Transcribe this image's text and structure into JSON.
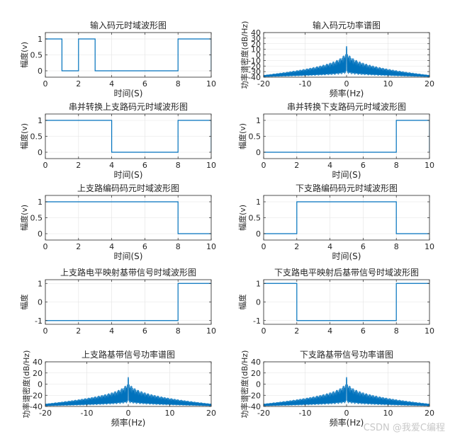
{
  "figure": {
    "watermark": "CSDN @我爱C编程"
  },
  "chart_data": [
    {
      "type": "line",
      "id": "p1",
      "title": "输入码元时域波形图",
      "xlabel": "时间(S)",
      "ylabel": "幅度(v)",
      "xlim": [
        0,
        10
      ],
      "ylim": [
        -0.2,
        1.2
      ],
      "xticks": [
        0,
        2,
        4,
        6,
        8,
        10
      ],
      "yticks": [
        0,
        0.5,
        1
      ],
      "ytick_labels": [
        "0",
        "0.5",
        "1"
      ],
      "grid": true,
      "color": "#0072BD",
      "x": [
        0,
        1,
        1,
        2,
        2,
        3,
        3,
        8,
        8,
        10,
        10
      ],
      "y": [
        1,
        1,
        0,
        0,
        1,
        1,
        0,
        0,
        1,
        1,
        0
      ]
    },
    {
      "type": "spectrum",
      "id": "p2",
      "title": "输入码元功率谱图",
      "xlabel": "频率(Hz)",
      "ylabel": "功率谱密度(dB/Hz)",
      "xlim": [
        -20,
        20
      ],
      "ylim": [
        -40,
        40
      ],
      "xticks": [
        -20,
        -10,
        0,
        10,
        20
      ],
      "yticks": [
        -40,
        -30,
        -20,
        -10,
        0,
        10,
        20,
        30,
        40
      ],
      "grid": true,
      "color": "#0072BD",
      "peak_db": 15,
      "floor_db": -40,
      "envelope_edge_db": -36
    },
    {
      "type": "line",
      "id": "p3",
      "title": "串并转换上支路码元时域波形图",
      "xlabel": "时间(S)",
      "ylabel": "幅度(v)",
      "xlim": [
        0,
        10
      ],
      "ylim": [
        -0.2,
        1.2
      ],
      "xticks": [
        0,
        2,
        4,
        6,
        8,
        10
      ],
      "yticks": [
        0,
        0.5,
        1
      ],
      "ytick_labels": [
        "0",
        "0.5",
        "1"
      ],
      "grid": true,
      "color": "#0072BD",
      "x": [
        0,
        4,
        4,
        8,
        8,
        10,
        10
      ],
      "y": [
        1,
        1,
        0,
        0,
        1,
        1,
        0
      ]
    },
    {
      "type": "line",
      "id": "p4",
      "title": "串并转换下支路码元时域波形图",
      "xlabel": "时间(S)",
      "ylabel": "幅度(v)",
      "xlim": [
        0,
        10
      ],
      "ylim": [
        -0.2,
        1.2
      ],
      "xticks": [
        0,
        2,
        4,
        6,
        8,
        10
      ],
      "yticks": [
        0,
        0.5,
        1
      ],
      "ytick_labels": [
        "0",
        "0.5",
        "1"
      ],
      "grid": true,
      "color": "#0072BD",
      "x": [
        0,
        8,
        8,
        10,
        10
      ],
      "y": [
        0,
        0,
        1,
        1,
        0
      ]
    },
    {
      "type": "line",
      "id": "p5",
      "title": "上支路编码码元时域波形图",
      "xlabel": "时间(S)",
      "ylabel": "幅度(v)",
      "xlim": [
        0,
        10
      ],
      "ylim": [
        -0.2,
        1.2
      ],
      "xticks": [
        0,
        2,
        4,
        6,
        8,
        10
      ],
      "yticks": [
        0,
        0.5,
        1
      ],
      "ytick_labels": [
        "0",
        "0.5",
        "1"
      ],
      "grid": true,
      "color": "#0072BD",
      "x": [
        0,
        8,
        8,
        10
      ],
      "y": [
        1,
        1,
        0,
        0
      ]
    },
    {
      "type": "line",
      "id": "p6",
      "title": "下支路编码码元时域波形图",
      "xlabel": "时间(S)",
      "ylabel": "幅度(v)",
      "xlim": [
        0,
        10
      ],
      "ylim": [
        -0.2,
        1.2
      ],
      "xticks": [
        0,
        2,
        4,
        6,
        8,
        10
      ],
      "yticks": [
        0,
        0.5,
        1
      ],
      "ytick_labels": [
        "0",
        "0.5",
        "1"
      ],
      "grid": true,
      "color": "#0072BD",
      "x": [
        0,
        2,
        2,
        8,
        8,
        10
      ],
      "y": [
        0,
        0,
        1,
        1,
        0,
        0
      ]
    },
    {
      "type": "line",
      "id": "p7",
      "title": "上支路电平映射基带信号时域波形图",
      "xlabel": "",
      "ylabel": "幅度",
      "xlim": [
        0,
        10
      ],
      "ylim": [
        -1.2,
        1.2
      ],
      "xticks": [
        0,
        2,
        4,
        6,
        8,
        10
      ],
      "yticks": [
        -1,
        0,
        1
      ],
      "ytick_labels": [
        "-1",
        "0",
        "1"
      ],
      "grid": true,
      "color": "#0072BD",
      "x": [
        0,
        8,
        8,
        10
      ],
      "y": [
        -1,
        -1,
        1,
        1
      ]
    },
    {
      "type": "line",
      "id": "p8",
      "title": "下支路电平映射后基带信号时域波形图",
      "xlabel": "",
      "ylabel": "幅度",
      "xlim": [
        0,
        10
      ],
      "ylim": [
        -1.2,
        1.2
      ],
      "xticks": [
        0,
        2,
        4,
        6,
        8,
        10
      ],
      "yticks": [
        -1,
        0,
        1
      ],
      "ytick_labels": [
        "-1",
        "0",
        "1"
      ],
      "grid": true,
      "color": "#0072BD",
      "x": [
        0,
        2,
        2,
        8,
        8,
        10
      ],
      "y": [
        1,
        1,
        -1,
        -1,
        1,
        1
      ]
    },
    {
      "type": "spectrum",
      "id": "p9",
      "title": "上支路基带信号功率谱图",
      "xlabel": "频率(Hz)",
      "ylabel": "功率谱密度(dB/Hz)",
      "xlim": [
        -20,
        20
      ],
      "ylim": [
        -40,
        40
      ],
      "xticks": [
        -20,
        -10,
        0,
        10,
        20
      ],
      "yticks": [
        -40,
        -20,
        0,
        20,
        40
      ],
      "grid": true,
      "color": "#0072BD",
      "peak_db": 12,
      "floor_db": -40,
      "envelope_edge_db": -35
    },
    {
      "type": "spectrum",
      "id": "p10",
      "title": "下支路基带信号功率谱图",
      "xlabel": "频率(Hz)",
      "ylabel": "功率谱密度(dB/Hz)",
      "xlim": [
        -20,
        20
      ],
      "ylim": [
        -40,
        40
      ],
      "xticks": [
        -20,
        -10,
        0,
        10,
        20
      ],
      "yticks": [
        -40,
        -20,
        0,
        20,
        40
      ],
      "grid": true,
      "color": "#0072BD",
      "peak_db": 12,
      "floor_db": -40,
      "envelope_edge_db": -35
    }
  ]
}
